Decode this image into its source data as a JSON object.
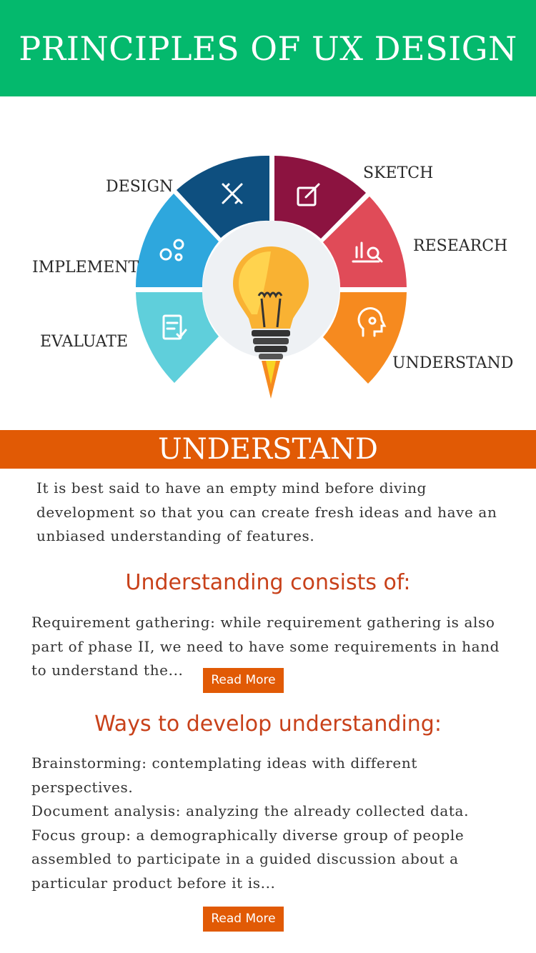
{
  "header": {
    "title": "PRINCIPLES OF UX DESIGN"
  },
  "diagram": {
    "labels": {
      "design": "DESIGN",
      "sketch": "SKETCH",
      "research": "RESEARCH",
      "implement": "IMPLEMENT",
      "evaluate": "EVALUATE",
      "understand": "UNDERSTAND"
    },
    "colors": {
      "design": "#0e4f7f",
      "sketch": "#8c1340",
      "research": "#e04b58",
      "implement": "#2ea7dd",
      "evaluate": "#5fcfdb",
      "understand": "#f68a1f",
      "bulb": "#f9b233"
    }
  },
  "section": {
    "title": "UNDERSTAND",
    "intro": [
      "It is best said to have an empty mind before diving",
      "development so that you can create fresh ideas and have an",
      "unbiased understanding of features."
    ]
  },
  "consists": {
    "heading": "Understanding consists of:",
    "text": [
      "Requirement gathering: while requirement gathering is also",
      "part of phase II, we need to have some requirements in hand",
      "to understand the..."
    ],
    "button": "Read More"
  },
  "ways": {
    "heading": "Ways to develop understanding:",
    "text": [
      "Brainstorming: contemplating ideas with different",
      "perspectives.",
      "Document analysis: analyzing the already collected data.",
      "Focus group: a demographically diverse group of people",
      "assembled to participate in a guided discussion about a",
      "particular product before it is..."
    ],
    "button": "Read More"
  },
  "theme": {
    "accent": "#e15a05",
    "header_green": "#04b96d",
    "heading_red": "#c8411a"
  }
}
